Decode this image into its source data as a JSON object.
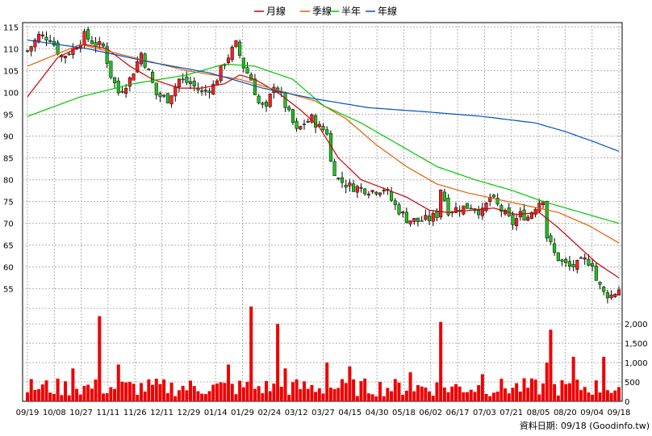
{
  "chart_data": [
    {
      "type": "candlestick",
      "title": "",
      "legend": [
        {
          "name": "月線",
          "color": "#cc0000"
        },
        {
          "name": "季線",
          "color": "#e06000"
        },
        {
          "name": "半年",
          "color": "#00c800"
        },
        {
          "name": "年線",
          "color": "#0050c8"
        }
      ],
      "y_ticks": [
        55,
        60,
        65,
        70,
        75,
        80,
        85,
        90,
        95,
        100,
        105,
        110,
        115
      ],
      "ylim": [
        50.5,
        116
      ],
      "x_tick_labels": [
        "09/19",
        "10/08",
        "10/27",
        "11/11",
        "11/26",
        "12/11",
        "12/29",
        "01/14",
        "01/29",
        "02/24",
        "03/12",
        "03/27",
        "04/15",
        "04/30",
        "05/18",
        "06/02",
        "06/17",
        "07/03",
        "07/21",
        "08/05",
        "08/20",
        "09/04",
        "09/18"
      ],
      "close_trend": [
        [
          0,
          109.5
        ],
        [
          3,
          113
        ],
        [
          6,
          112.5
        ],
        [
          9,
          108
        ],
        [
          12,
          110
        ],
        [
          15,
          113
        ],
        [
          18,
          111
        ],
        [
          20,
          110.5
        ],
        [
          22,
          104
        ],
        [
          24,
          100
        ],
        [
          27,
          103
        ],
        [
          30,
          109
        ],
        [
          32,
          104.5
        ],
        [
          34,
          99.5
        ],
        [
          37,
          98.5
        ],
        [
          40,
          103
        ],
        [
          43,
          102
        ],
        [
          46,
          100
        ],
        [
          49,
          101.5
        ],
        [
          52,
          107
        ],
        [
          55,
          111
        ],
        [
          57,
          106
        ],
        [
          59,
          103
        ],
        [
          61,
          97.5
        ],
        [
          63,
          96
        ],
        [
          65,
          102
        ],
        [
          67,
          99
        ],
        [
          69,
          95
        ],
        [
          71,
          91
        ],
        [
          73,
          93
        ],
        [
          75,
          94
        ],
        [
          77,
          92
        ],
        [
          79,
          91
        ],
        [
          80,
          84
        ],
        [
          82,
          80
        ],
        [
          85,
          78.5
        ],
        [
          88,
          78
        ],
        [
          91,
          77.5
        ],
        [
          94,
          78
        ],
        [
          97,
          74
        ],
        [
          100,
          71
        ],
        [
          103,
          70.5
        ],
        [
          106,
          71
        ],
        [
          108,
          72
        ],
        [
          109,
          78
        ],
        [
          111,
          73
        ],
        [
          114,
          73.5
        ],
        [
          117,
          74
        ],
        [
          120,
          72.5
        ],
        [
          122,
          76
        ],
        [
          124,
          74
        ],
        [
          126,
          72
        ],
        [
          128,
          70
        ],
        [
          130,
          72
        ],
        [
          132,
          71.5
        ],
        [
          134,
          74
        ],
        [
          136,
          76
        ],
        [
          137,
          67
        ],
        [
          139,
          63
        ],
        [
          141,
          61
        ],
        [
          143,
          60
        ],
        [
          145,
          60.5
        ],
        [
          147,
          61.5
        ],
        [
          149,
          61
        ],
        [
          150,
          57
        ],
        [
          152,
          54
        ],
        [
          154,
          53.5
        ],
        [
          156,
          55
        ]
      ],
      "series": [
        {
          "name": "月線",
          "points": [
            [
              0,
              99
            ],
            [
              8,
              108
            ],
            [
              15,
              111
            ],
            [
              21,
              110
            ],
            [
              27,
              106
            ],
            [
              33,
              103
            ],
            [
              40,
              101
            ],
            [
              46,
              101
            ],
            [
              52,
              102
            ],
            [
              56,
              104
            ],
            [
              60,
              103
            ],
            [
              66,
              100
            ],
            [
              72,
              96
            ],
            [
              77,
              92
            ],
            [
              82,
              85
            ],
            [
              88,
              80
            ],
            [
              94,
              78
            ],
            [
              100,
              76
            ],
            [
              106,
              73
            ],
            [
              111,
              72.5
            ],
            [
              117,
              73
            ],
            [
              123,
              73.5
            ],
            [
              129,
              72
            ],
            [
              135,
              72.5
            ],
            [
              140,
              69
            ],
            [
              145,
              65
            ],
            [
              150,
              61
            ],
            [
              156,
              57.5
            ]
          ]
        },
        {
          "name": "季線",
          "points": [
            [
              0,
              106
            ],
            [
              14,
              111
            ],
            [
              28,
              108
            ],
            [
              42,
              105
            ],
            [
              56,
              103
            ],
            [
              66,
              100.5
            ],
            [
              76,
              98
            ],
            [
              84,
              94
            ],
            [
              92,
              88
            ],
            [
              100,
              83
            ],
            [
              108,
              79
            ],
            [
              116,
              77
            ],
            [
              124,
              75.5
            ],
            [
              132,
              74
            ],
            [
              140,
              72.5
            ],
            [
              148,
              69.5
            ],
            [
              156,
              65.5
            ]
          ]
        },
        {
          "name": "半年",
          "points": [
            [
              0,
              94.5
            ],
            [
              14,
              99
            ],
            [
              28,
              102
            ],
            [
              42,
              104
            ],
            [
              52,
              106.5
            ],
            [
              60,
              106
            ],
            [
              70,
              103
            ],
            [
              78,
              97
            ],
            [
              88,
              93
            ],
            [
              98,
              88
            ],
            [
              108,
              83
            ],
            [
              118,
              80
            ],
            [
              128,
              77.5
            ],
            [
              136,
              75
            ],
            [
              144,
              73
            ],
            [
              150,
              71.5
            ],
            [
              156,
              70
            ]
          ]
        },
        {
          "name": "年線",
          "points": [
            [
              0,
              112
            ],
            [
              16,
              110
            ],
            [
              32,
              107
            ],
            [
              48,
              104.5
            ],
            [
              62,
              101
            ],
            [
              76,
              98.5
            ],
            [
              90,
              96.5
            ],
            [
              106,
              95.5
            ],
            [
              120,
              94.5
            ],
            [
              134,
              93
            ],
            [
              142,
              91
            ],
            [
              150,
              88.5
            ],
            [
              156,
              86.5
            ]
          ]
        }
      ],
      "volume": {
        "y_ticks": [
          0,
          500,
          1000,
          1500,
          2000
        ],
        "ylim": [
          0,
          2400
        ],
        "spikes": [
          [
            19,
            2200
          ],
          [
            59,
            2450
          ],
          [
            66,
            2000
          ],
          [
            109,
            2050
          ],
          [
            138,
            1850
          ],
          [
            152,
            1150
          ],
          [
            144,
            1150
          ],
          [
            137,
            1000
          ],
          [
            12,
            850
          ],
          [
            24,
            950
          ],
          [
            53,
            950
          ],
          [
            68,
            850
          ],
          [
            79,
            1000
          ],
          [
            85,
            900
          ],
          [
            101,
            750
          ],
          [
            120,
            700
          ]
        ]
      }
    }
  ],
  "footer": {
    "label": "資料日期: 09/18 (Goodinfo.tw)"
  }
}
